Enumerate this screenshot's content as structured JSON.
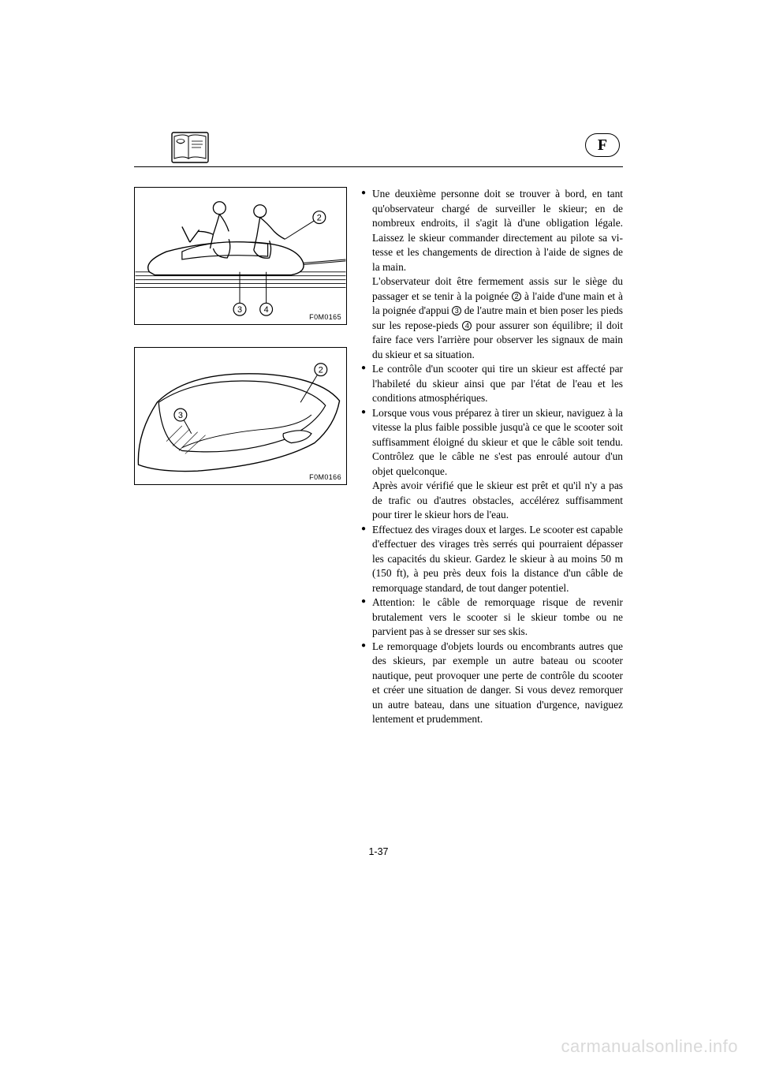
{
  "language_badge": "F",
  "page_number": "1-37",
  "watermark": "carmanualsonline.info",
  "figures": {
    "fig1": {
      "caption": "F0M0165",
      "callouts": {
        "c2": "2",
        "c3": "3",
        "c4": "4"
      }
    },
    "fig2": {
      "caption": "F0M0166",
      "callouts": {
        "c2": "2",
        "c3": "3"
      }
    }
  },
  "bullets": [
    {
      "main": "Une deuxième personne doit se trouver à bord, en tant qu'observateur chargé de sur­veiller le skieur; en de nombreux endroits, il s'agit là d'une obligation légale. Laissez le skieur commander directement au pilote sa vi­tesse et les changements de direction à l'aide de signes de la main.",
      "sub": "L'observateur doit être fermement assis sur le siège du passager et se tenir à la poignée {2} à l'aide d'une main et à la poignée d'appui {3} de l'autre main et bien poser les pieds sur les repose-pieds {4} pour assurer son équilibre; il doit faire face vers l'arrière pour observer les signaux de main du skieur et sa situation."
    },
    {
      "main": "Le contrôle d'un scooter qui tire un skieur est affecté par l'habileté du skieur ainsi que par l'état de l'eau et les conditions atmosphéri­ques."
    },
    {
      "main": "Lorsque vous vous préparez à tirer un skieur, naviguez à la vitesse la plus faible possible jusqu'à ce que le scooter soit suffisamment éloigné du skieur et que le câble soit tendu. Contrôlez que le câble ne s'est pas enroulé autour d'un objet quelconque.",
      "sub": "Après avoir vérifié que le skieur est prêt et qu'il n'y a pas de trafic ou d'autres obstacles, accélérez suffisamment pour tirer le skieur hors de l'eau."
    },
    {
      "main": "Effectuez des virages doux et larges. Le scoo­ter est capable d'effectuer des virages très ser­rés qui pourraient dépasser les capacités du skieur. Gardez le skieur à au moins 50 m (150 ft), à peu près deux fois la distance d'un câble de remorquage standard, de tout danger potentiel."
    },
    {
      "main": "Attention: le câble de remorquage risque de revenir brutalement vers le scooter si le skieur tombe ou ne parvient pas à se dresser sur ses skis."
    },
    {
      "main": "Le remorquage d'objets lourds ou encom­brants autres que des skieurs, par exemple un autre bateau ou scooter nautique, peut provo­quer une perte de contrôle du scooter et créer une situation de danger. Si vous devez remor­quer un autre bateau, dans une situation d'ur­gence, naviguez lentement et prudemment."
    }
  ]
}
